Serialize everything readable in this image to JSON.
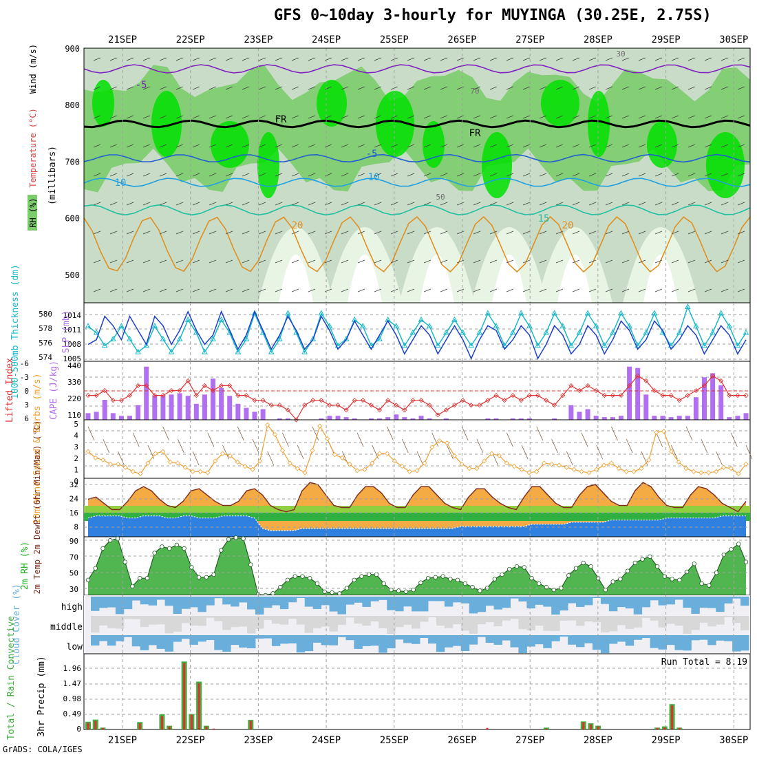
{
  "title": "GFS 0~10day 3-hourly for MUYINGA (30.25E, 2.75S)",
  "footer": "GrADS: COLA/IGES",
  "colors": {
    "frame": "#000000",
    "grid": "#a0a0a0",
    "rh_green_1": "#e8f4e4",
    "rh_green_2": "#c8dcc8",
    "rh_green_3": "#7ccc6c",
    "rh_green_4": "#00e000",
    "slp_line": "#1c40c8",
    "thickness_line": "#18b8c8",
    "lifted_index": "#e03030",
    "cape_bar": "#b070f0",
    "wind_speed": "#f0a030",
    "temp_fill": "#f08020",
    "dewpt_fill": "#3080e0",
    "rh2m_fill": "#20b020",
    "cloud_fill": "#6aaedc",
    "cloud_bg": "#f0f0f4",
    "precip_total": "#40b040",
    "precip_conv": "#e03030"
  },
  "chart_data": [
    {
      "type": "heatmap",
      "panel": "upper-air",
      "dates": [
        "21SEP",
        "22SEP",
        "23SEP",
        "24SEP",
        "25SEP",
        "26SEP",
        "27SEP",
        "28SEP",
        "29SEP",
        "30SEP"
      ],
      "y_ticks": [
        500,
        600,
        700,
        800,
        900
      ],
      "ylim": [
        900,
        450
      ],
      "ylabel_parts": [
        "RH (%)",
        "Temperature (°C)",
        "Wind (m/s)",
        "(millibars)"
      ],
      "isotherm_labels": [
        "-5",
        "FR",
        "FR",
        "-5",
        "10",
        "10",
        "15",
        "20",
        "20"
      ],
      "rh_labels": [
        "70",
        "50",
        "30"
      ]
    },
    {
      "type": "line",
      "panel": "slp-thickness",
      "ylabel_left": "1000-500mb Thickness (dm)",
      "ylabel_right": "SLP (mb)",
      "left_ticks": [
        "580",
        "578",
        "576",
        "574"
      ],
      "right_ticks": [
        "1014",
        "1011",
        "1008",
        "1005"
      ],
      "slp_ylim": [
        1005,
        1016
      ],
      "thickness_ylim": [
        573,
        581
      ],
      "series": [
        {
          "values": [
            1008,
            1009,
            1014,
            1012,
            1009,
            1014,
            1011,
            1008,
            1014,
            1012,
            1008,
            1011,
            1015,
            1011,
            1008,
            1010,
            1015,
            1011,
            1007,
            1010,
            1015,
            1011,
            1007,
            1010,
            1014,
            1011,
            1007,
            1009,
            1014,
            1011,
            1007,
            1009,
            1013,
            1010,
            1007,
            1010,
            1013,
            1010,
            1006,
            1009,
            1012,
            1010,
            1006,
            1009,
            1012,
            1009,
            1005,
            1009,
            1012,
            1011,
            1007,
            1009,
            1012,
            1010,
            1005,
            1008,
            1012,
            1010,
            1006,
            1008,
            1012,
            1010,
            1006,
            1009,
            1013,
            1011,
            1007,
            1009,
            1013,
            1011,
            1007,
            1009,
            1012,
            1010,
            1006,
            1009,
            1012,
            1010,
            1006,
            1009
          ]
        },
        {
          "values": [
            578,
            577,
            575,
            576,
            578,
            576,
            574,
            575,
            578,
            576,
            574,
            576,
            579,
            577,
            574,
            576,
            579,
            577,
            574,
            576,
            580,
            577,
            574,
            576,
            580,
            577,
            574,
            576,
            580,
            578,
            575,
            576,
            579,
            578,
            575,
            576,
            579,
            578,
            575,
            577,
            579,
            578,
            575,
            577,
            579,
            577,
            575,
            577,
            580,
            578,
            575,
            577,
            580,
            578,
            575,
            577,
            580,
            578,
            575,
            577,
            580,
            578,
            575,
            577,
            580,
            578,
            575,
            577,
            580,
            577,
            575,
            577,
            581,
            578,
            575,
            577,
            580,
            578,
            575,
            577
          ]
        }
      ]
    },
    {
      "type": "bar",
      "panel": "lifted-cape",
      "ylabel_left": "Lifted Index",
      "ylabel_right": "CAPE (J/kg)",
      "left_ticks": [
        "-6",
        "-3",
        "0",
        "3",
        "6"
      ],
      "right_ticks": [
        "440",
        "330",
        "220",
        "110"
      ],
      "cape_ylim": [
        0,
        440
      ],
      "li_ylim": [
        6,
        -6
      ],
      "series": [
        {
          "values": [
            50,
            60,
            150,
            50,
            30,
            30,
            110,
            400,
            180,
            180,
            190,
            200,
            180,
            120,
            190,
            310,
            240,
            180,
            120,
            90,
            60,
            80,
            0,
            10,
            10,
            0,
            0,
            0,
            10,
            30,
            30,
            20,
            10,
            0,
            10,
            10,
            20,
            40,
            20,
            10,
            30,
            10,
            0,
            10,
            0,
            0,
            0,
            0,
            10,
            10,
            0,
            10,
            10,
            10,
            0,
            0,
            10,
            0,
            110,
            60,
            80,
            30,
            20,
            20,
            30,
            400,
            390,
            190,
            30,
            30,
            20,
            30,
            30,
            170,
            320,
            350,
            260,
            20,
            30,
            50
          ]
        },
        {
          "values": [
            1,
            1,
            0,
            2,
            2,
            1,
            -1,
            -1,
            1,
            1,
            0,
            0,
            -2,
            1,
            -1,
            0,
            -1,
            -1,
            1,
            1,
            2,
            2,
            3,
            3,
            4,
            6,
            3,
            2,
            2,
            3,
            3,
            4,
            2,
            2,
            3,
            4,
            2,
            3,
            4,
            2,
            2,
            3,
            5,
            4,
            3,
            2,
            3,
            3,
            2,
            1,
            2,
            1,
            2,
            1,
            1,
            2,
            3,
            1,
            -1,
            0,
            -1,
            0,
            1,
            1,
            1,
            -1,
            -3,
            -2,
            0,
            1,
            1,
            2,
            1,
            0,
            -1,
            -3,
            -2,
            1,
            1,
            1
          ]
        }
      ]
    },
    {
      "type": "line",
      "panel": "wind-10m",
      "ylabel": "10m Wind Speed & Barbs (m/s)",
      "ticks": [
        "5",
        "4",
        "3",
        "2",
        "1",
        "0"
      ],
      "ylim": [
        0,
        5
      ],
      "series": [
        {
          "values": [
            2.4,
            1.8,
            1.6,
            1.2,
            1.2,
            0.9,
            0.5,
            0.3,
            1.3,
            2.2,
            2.4,
            1.4,
            1.3,
            0.9,
            0.5,
            0.5,
            0.4,
            1.5,
            2.2,
            2.0,
            1.4,
            1.0,
            0.7,
            1.5,
            4.9,
            4.0,
            2.5,
            1.3,
            0.8,
            0.4,
            2.5,
            4.8,
            3.6,
            2.1,
            1.8,
            1.2,
            0.6,
            0.7,
            1.3,
            2.2,
            2.2,
            1.5,
            1.0,
            0.5,
            0.6,
            1.3,
            2.8,
            3.4,
            3.2,
            2.0,
            1.2,
            0.8,
            0.8,
            1.5,
            2.2,
            2.0,
            1.3,
            1.0,
            0.7,
            0.4,
            0.5,
            1.3,
            1.2,
            1.1,
            0.9,
            0.7,
            0.5,
            0.4,
            0.7,
            1.1,
            1.3,
            0.8,
            0.5,
            0.5,
            0.8,
            1.6,
            4.2,
            4.3,
            2.4,
            1.4,
            0.8,
            0.5,
            0.4,
            0.4,
            0.5,
            0.9,
            0.8,
            0.3,
            1.2
          ]
        }
      ]
    },
    {
      "type": "area",
      "panel": "temp-2m",
      "ylabel": "2m Temp 2m DewPt (6hr Min/Max) (°C)",
      "ticks": [
        "32",
        "24",
        "16",
        "8"
      ],
      "ylim": [
        4,
        32
      ],
      "series": [
        {
          "values": [
            22,
            23,
            20,
            17,
            17,
            21,
            26,
            28,
            26,
            22,
            19,
            18,
            21,
            26,
            27,
            24,
            21,
            19,
            19,
            21,
            26,
            27,
            24,
            19,
            17,
            16,
            17,
            26,
            30,
            29,
            24,
            19,
            18,
            18,
            24,
            28,
            28,
            25,
            20,
            18,
            18,
            24,
            28,
            28,
            24,
            20,
            18,
            17,
            23,
            27,
            27,
            23,
            20,
            18,
            17,
            23,
            28,
            28,
            24,
            20,
            18,
            18,
            24,
            28,
            29,
            25,
            21,
            19,
            19,
            26,
            30,
            28,
            23,
            19,
            18,
            18,
            24,
            28,
            27,
            24,
            20,
            18,
            16,
            21
          ]
        },
        {
          "values": [
            13,
            14,
            14,
            14,
            14,
            13,
            13,
            14,
            14,
            14,
            13,
            13,
            14,
            14,
            13,
            13,
            13,
            14,
            14,
            14,
            14,
            13,
            8,
            7,
            7,
            7,
            7,
            8,
            8,
            8,
            8,
            8,
            8,
            8,
            8,
            8,
            8,
            8,
            8,
            8,
            8,
            8,
            8,
            8,
            8,
            8,
            8,
            9,
            9,
            9,
            9,
            9,
            9,
            9,
            9,
            9,
            10,
            10,
            10,
            10,
            10,
            11,
            11,
            11,
            11,
            11,
            12,
            12,
            12,
            12,
            12,
            12,
            12,
            13,
            13,
            13,
            13,
            13,
            13,
            13,
            14,
            14,
            14,
            14
          ]
        }
      ]
    },
    {
      "type": "area",
      "panel": "rh-2m",
      "ylabel": "2m RH (%)",
      "ticks": [
        "90",
        "70",
        "50",
        "30"
      ],
      "ylim": [
        25,
        90
      ],
      "series": [
        {
          "values": [
            42,
            55,
            77,
            86,
            88,
            62,
            35,
            44,
            44,
            72,
            79,
            77,
            81,
            77,
            56,
            45,
            45,
            48,
            75,
            87,
            89,
            88,
            59,
            26,
            25,
            27,
            34,
            42,
            46,
            46,
            44,
            38,
            29,
            28,
            27,
            33,
            42,
            46,
            48,
            48,
            38,
            31,
            30,
            29,
            31,
            39,
            44,
            45,
            46,
            43,
            42,
            38,
            34,
            30,
            33,
            43,
            48,
            54,
            57,
            56,
            44,
            38,
            34,
            31,
            33,
            47,
            55,
            61,
            57,
            44,
            31,
            40,
            43,
            52,
            61,
            65,
            68,
            57,
            46,
            43,
            42,
            51,
            60,
            38,
            36,
            50,
            70,
            76,
            82,
            62
          ]
        }
      ]
    },
    {
      "type": "heatmap",
      "panel": "cloud-cover",
      "ylabel": "Cloud Cover (%)",
      "rows": [
        "high",
        "middle",
        "low"
      ]
    },
    {
      "type": "bar",
      "panel": "precip",
      "ylabel_left": "Total / Rain Convective",
      "ylabel": "3hr Precip (mm)",
      "ticks": [
        "1.96",
        "1.47",
        "0.98",
        "0.49",
        "0"
      ],
      "ylim": [
        0,
        2.45
      ],
      "run_total": "Run Total = 8.19",
      "series": [
        {
          "values": [
            0.25,
            0.32,
            0.06,
            0,
            0,
            0,
            0,
            0.24,
            0,
            0,
            0.49,
            0.12,
            0,
            2.2,
            0.5,
            1.55,
            0.12,
            0,
            0,
            0,
            0,
            0,
            0.31,
            0,
            0,
            0,
            0,
            0,
            0,
            0,
            0,
            0,
            0,
            0,
            0,
            0,
            0,
            0,
            0,
            0,
            0,
            0,
            0,
            0,
            0,
            0,
            0,
            0,
            0,
            0,
            0,
            0,
            0,
            0,
            0,
            0,
            0,
            0,
            0,
            0,
            0,
            0,
            0.06,
            0,
            0,
            0,
            0,
            0.26,
            0.2,
            0.12,
            0,
            0,
            0,
            0,
            0,
            0,
            0,
            0.06,
            0.1,
            0.82,
            0.06,
            0,
            0,
            0,
            0,
            0,
            0,
            0,
            0,
            0
          ]
        },
        {
          "values": [
            0.22,
            0.28,
            0.05,
            0,
            0,
            0,
            0,
            0.2,
            0,
            0,
            0.44,
            0.1,
            0,
            2.15,
            0.48,
            1.5,
            0.1,
            0.03,
            0,
            0,
            0,
            0,
            0.28,
            0,
            0,
            0,
            0,
            0,
            0,
            0,
            0,
            0,
            0,
            0,
            0,
            0,
            0,
            0,
            0,
            0,
            0,
            0,
            0,
            0,
            0,
            0,
            0,
            0,
            0,
            0,
            0,
            0,
            0,
            0,
            0.05,
            0,
            0,
            0,
            0,
            0,
            0,
            0,
            0.03,
            0,
            0,
            0,
            0,
            0.24,
            0.17,
            0.1,
            0,
            0,
            0,
            0,
            0,
            0,
            0,
            0.05,
            0.07,
            0.78,
            0.05,
            0,
            0,
            0,
            0,
            0,
            0,
            0,
            0,
            0
          ]
        }
      ]
    }
  ]
}
